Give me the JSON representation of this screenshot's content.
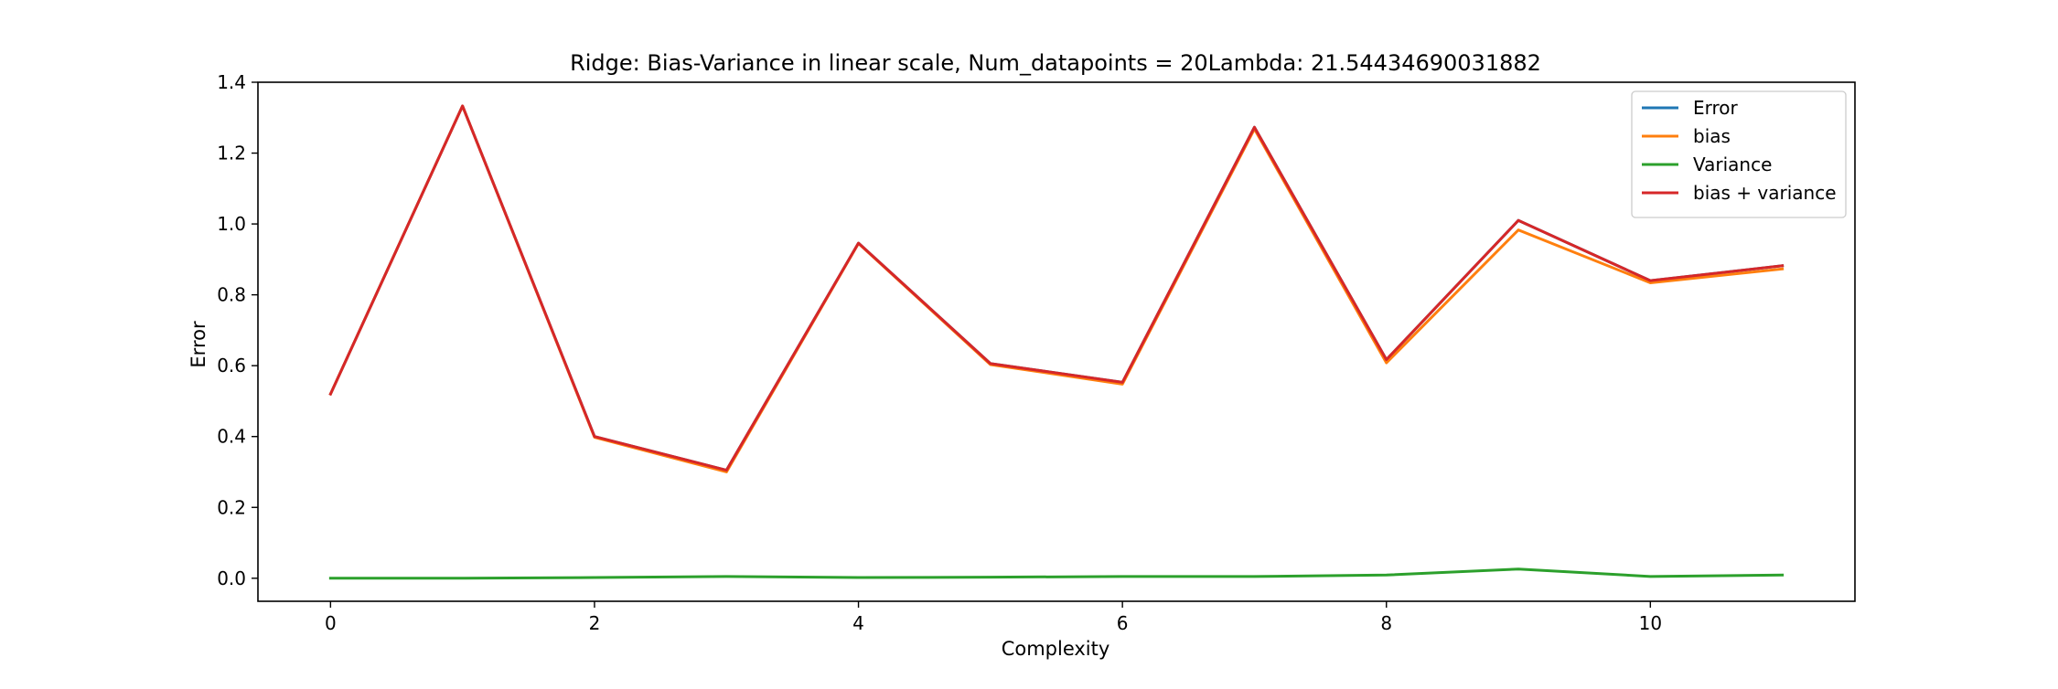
{
  "chart_data": {
    "type": "line",
    "title": "Ridge: Bias-Variance in linear scale, Num_datapoints = 20Lambda: 21.54434690031882",
    "xlabel": "Complexity",
    "ylabel": "Error",
    "x": [
      0,
      1,
      2,
      3,
      4,
      5,
      6,
      7,
      8,
      9,
      10,
      11
    ],
    "xlim": [
      -0.55,
      11.55
    ],
    "ylim": [
      -0.065,
      1.4
    ],
    "xticks": [
      0,
      2,
      4,
      6,
      8,
      10
    ],
    "yticks": [
      0.0,
      0.2,
      0.4,
      0.6,
      0.8,
      1.0,
      1.2,
      1.4
    ],
    "ytick_labels": [
      "0.0",
      "0.2",
      "0.4",
      "0.6",
      "0.8",
      "1.0",
      "1.2",
      "1.4"
    ],
    "grid": false,
    "legend_position": "top-right",
    "series": [
      {
        "name": "Error",
        "color": "#1f77b4",
        "values": [
          0.52,
          1.333,
          0.4,
          0.305,
          0.946,
          0.606,
          0.553,
          1.273,
          0.617,
          1.01,
          0.84,
          0.882
        ]
      },
      {
        "name": "bias",
        "color": "#ff7f0e",
        "values": [
          0.52,
          1.333,
          0.398,
          0.3,
          0.945,
          0.603,
          0.548,
          1.268,
          0.608,
          0.983,
          0.834,
          0.873
        ]
      },
      {
        "name": "Variance",
        "color": "#2ca02c",
        "values": [
          0.0,
          0.0,
          0.002,
          0.005,
          0.002,
          0.003,
          0.005,
          0.005,
          0.009,
          0.026,
          0.005,
          0.009
        ]
      },
      {
        "name": "bias + variance",
        "color": "#d62728",
        "values": [
          0.52,
          1.333,
          0.4,
          0.305,
          0.946,
          0.606,
          0.553,
          1.273,
          0.617,
          1.01,
          0.84,
          0.882
        ]
      }
    ]
  }
}
